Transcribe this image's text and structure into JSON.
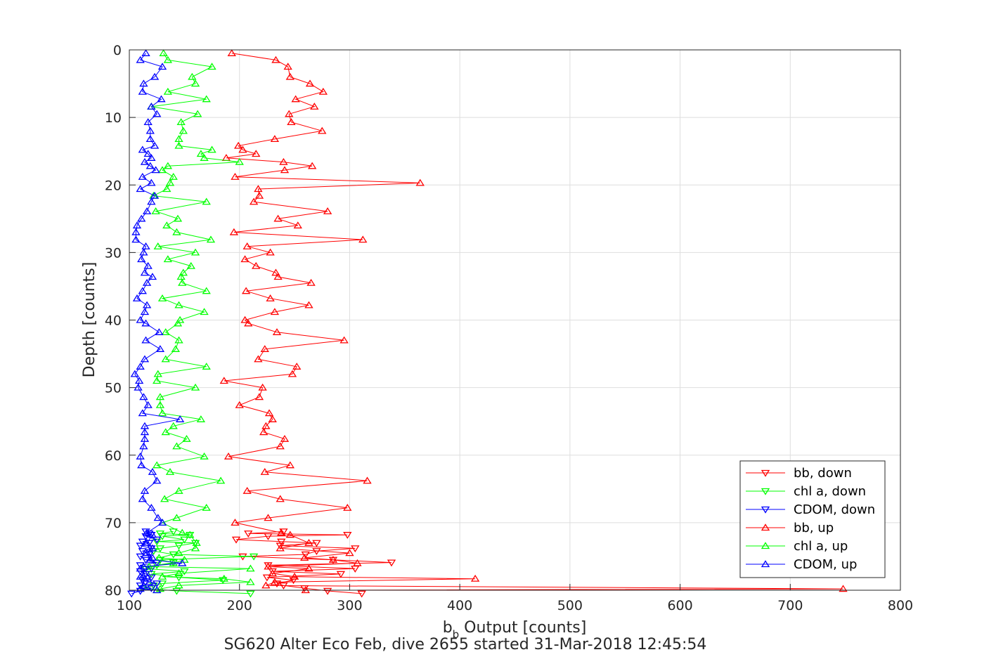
{
  "chart_data": {
    "type": "line",
    "xlabel_main": "b",
    "xlabel_sub": "b",
    "xlabel_rest": " Output [counts]",
    "ylabel": "Depth [counts]",
    "caption": "SG620 Alter Eco Feb, dive 2655 started 31-Mar-2018 12:45:54",
    "xlim": [
      100,
      800
    ],
    "ylim": [
      0,
      80
    ],
    "y_reversed": true,
    "grid": true,
    "legend_position": "bottom-right",
    "xticks": [
      "100",
      "200",
      "300",
      "400",
      "500",
      "600",
      "700",
      "800"
    ],
    "yticks": [
      "0",
      "10",
      "20",
      "30",
      "40",
      "50",
      "60",
      "70",
      "80"
    ],
    "series": [
      {
        "name": "bb, down",
        "color": "#ff0000",
        "marker": "triangle-down",
        "x": [
          311,
          280,
          259,
          240,
          234,
          249,
          225,
          292,
          230,
          305,
          226,
          338,
          285,
          203,
          260,
          270,
          305,
          237,
          270,
          238,
          197,
          226,
          298,
          208,
          240
        ],
        "y": [
          80.5,
          80.1,
          79.7,
          79.3,
          79.0,
          78.5,
          78.1,
          77.6,
          77.2,
          76.8,
          76.3,
          75.9,
          75.5,
          75.0,
          74.7,
          74.2,
          73.8,
          73.4,
          73.0,
          72.8,
          72.5,
          72.0,
          71.8,
          71.6,
          71.3
        ]
      },
      {
        "name": "chl a, down",
        "color": "#00ff00",
        "marker": "triangle-down",
        "x": [
          210,
          143,
          112,
          122,
          130,
          185,
          145,
          120,
          150,
          115,
          125,
          140,
          128,
          213,
          140,
          122,
          128,
          145,
          160,
          125,
          150,
          130,
          155,
          128,
          140
        ],
        "y": [
          80.5,
          80.1,
          79.7,
          79.3,
          79.0,
          78.5,
          78.1,
          77.6,
          77.2,
          76.8,
          76.3,
          75.9,
          75.5,
          75.0,
          74.7,
          74.2,
          73.8,
          73.4,
          73.0,
          72.8,
          72.5,
          72.0,
          71.8,
          71.6,
          71.3
        ]
      },
      {
        "name": "CDOM, down",
        "color": "#0000ff",
        "marker": "triangle-down",
        "x": [
          102,
          110,
          120,
          110,
          125,
          112,
          120,
          115,
          110,
          120,
          110,
          125,
          115,
          110,
          118,
          112,
          120,
          110,
          118,
          112,
          125,
          115,
          120,
          118,
          115
        ],
        "y": [
          80.5,
          80.1,
          79.7,
          79.3,
          79.0,
          78.5,
          78.1,
          77.6,
          77.2,
          76.8,
          76.3,
          75.9,
          75.5,
          75.0,
          74.7,
          74.2,
          73.8,
          73.4,
          73.0,
          72.8,
          72.5,
          72.0,
          71.8,
          71.6,
          71.3
        ]
      },
      {
        "name": "bb, up",
        "color": "#ff0000",
        "marker": "triangle-up",
        "x": [
          193,
          233,
          244,
          246,
          264,
          276,
          251,
          268,
          245,
          247,
          275,
          232,
          199,
          203,
          215,
          188,
          240,
          266,
          241,
          196,
          364,
          217,
          218,
          213,
          280,
          235,
          253,
          195,
          312,
          207,
          228,
          205,
          215,
          233,
          235,
          265,
          206,
          228,
          263,
          232,
          205,
          208,
          234,
          295,
          223,
          217,
          252,
          248,
          186,
          221,
          218,
          200,
          227,
          230,
          224,
          222,
          241,
          237,
          190,
          246,
          223,
          316,
          207,
          237,
          298,
          226,
          196,
          238,
          246,
          263,
          237,
          300,
          259,
          285,
          307,
          226,
          263,
          230,
          250,
          414,
          232,
          224,
          748,
          260
        ],
        "y": [
          0.5,
          1.5,
          2.5,
          4.0,
          5.0,
          6.2,
          7.3,
          8.4,
          9.5,
          10.7,
          12.0,
          13.2,
          14.2,
          14.8,
          15.4,
          16.0,
          16.6,
          17.2,
          17.8,
          18.8,
          19.7,
          20.6,
          21.6,
          22.5,
          23.9,
          25.0,
          26.0,
          27.0,
          28.1,
          29.1,
          30.0,
          31.0,
          32.0,
          33.0,
          33.6,
          34.5,
          35.7,
          36.8,
          37.8,
          38.8,
          40.0,
          40.5,
          41.8,
          43.0,
          44.3,
          45.8,
          46.9,
          48.0,
          49.0,
          50.0,
          51.4,
          52.6,
          53.8,
          54.7,
          55.7,
          56.6,
          57.6,
          58.7,
          60.2,
          61.5,
          62.5,
          63.8,
          65.3,
          66.5,
          67.8,
          69.3,
          70.0,
          71.5,
          71.8,
          73.0,
          73.8,
          74.5,
          75.2,
          75.5,
          76.0,
          76.5,
          76.8,
          77.5,
          78.0,
          78.3,
          78.8,
          79.3,
          79.8,
          80.0
        ]
      },
      {
        "name": "chl a, up",
        "color": "#00ff00",
        "marker": "triangle-up",
        "x": [
          131,
          135,
          175,
          157,
          160,
          135,
          170,
          120,
          162,
          147,
          149,
          145,
          145,
          175,
          165,
          168,
          200,
          135,
          130,
          140,
          137,
          134,
          122,
          170,
          124,
          144,
          134,
          143,
          174,
          126,
          160,
          135,
          156,
          149,
          147,
          148,
          170,
          130,
          145,
          168,
          146,
          144,
          133,
          145,
          142,
          133,
          170,
          126,
          125,
          160,
          128,
          128,
          130,
          165,
          140,
          133,
          152,
          143,
          168,
          125,
          137,
          183,
          145,
          132,
          170,
          143,
          130,
          148,
          155,
          161,
          160,
          145,
          127,
          150,
          140,
          118,
          210,
          145,
          130,
          186,
          210,
          145,
          128,
          125
        ],
        "y": [
          0.5,
          1.5,
          2.5,
          4.0,
          5.0,
          6.2,
          7.3,
          8.4,
          9.5,
          10.7,
          12.0,
          13.2,
          14.2,
          14.8,
          15.4,
          16.0,
          16.6,
          17.2,
          17.8,
          18.8,
          19.7,
          20.6,
          21.6,
          22.5,
          23.9,
          25.0,
          26.0,
          27.0,
          28.1,
          29.1,
          30.0,
          31.0,
          32.0,
          33.0,
          33.6,
          34.5,
          35.7,
          36.8,
          37.8,
          38.8,
          40.0,
          40.5,
          41.8,
          43.0,
          44.3,
          45.8,
          46.9,
          48.0,
          49.0,
          50.0,
          51.4,
          52.6,
          53.8,
          54.7,
          55.7,
          56.6,
          57.6,
          58.7,
          60.2,
          61.5,
          62.5,
          63.8,
          65.3,
          66.5,
          67.8,
          69.3,
          70.0,
          71.5,
          71.8,
          73.0,
          73.8,
          74.5,
          75.2,
          75.5,
          76.0,
          76.5,
          76.8,
          77.5,
          78.0,
          78.3,
          78.8,
          79.3,
          79.8,
          80.0
        ]
      },
      {
        "name": "CDOM, up",
        "color": "#0000ff",
        "marker": "triangle-up",
        "x": [
          115,
          110,
          130,
          123,
          113,
          112,
          129,
          120,
          125,
          117,
          119,
          119,
          123,
          112,
          117,
          120,
          114,
          119,
          124,
          112,
          120,
          110,
          123,
          120,
          116,
          111,
          107,
          106,
          106,
          115,
          113,
          111,
          117,
          114,
          121,
          116,
          112,
          107,
          116,
          114,
          110,
          115,
          127,
          115,
          128,
          114,
          110,
          105,
          109,
          108,
          113,
          117,
          112,
          146,
          114,
          114,
          114,
          113,
          110,
          111,
          121,
          125,
          114,
          112,
          120,
          126,
          130,
          116,
          121,
          116,
          121,
          116,
          121,
          119,
          148,
          113,
          110,
          114,
          110,
          114,
          118,
          113,
          110,
          125
        ],
        "y": [
          0.5,
          1.5,
          2.5,
          4.0,
          5.0,
          6.2,
          7.3,
          8.4,
          9.5,
          10.7,
          12.0,
          13.2,
          14.2,
          14.8,
          15.4,
          16.0,
          16.6,
          17.2,
          17.8,
          18.8,
          19.7,
          20.6,
          21.6,
          22.5,
          23.9,
          25.0,
          26.0,
          27.0,
          28.1,
          29.1,
          30.0,
          31.0,
          32.0,
          33.0,
          33.6,
          34.5,
          35.7,
          36.8,
          37.8,
          38.8,
          40.0,
          40.5,
          41.8,
          43.0,
          44.3,
          45.8,
          46.9,
          48.0,
          49.0,
          50.0,
          51.4,
          52.6,
          53.8,
          54.7,
          55.7,
          56.6,
          57.6,
          58.7,
          60.2,
          61.5,
          62.5,
          63.8,
          65.3,
          66.5,
          67.8,
          69.3,
          70.0,
          71.5,
          71.8,
          73.0,
          73.8,
          74.5,
          75.2,
          75.5,
          76.0,
          76.5,
          76.8,
          77.5,
          78.0,
          78.3,
          78.8,
          79.3,
          79.8,
          80.0
        ]
      }
    ]
  }
}
